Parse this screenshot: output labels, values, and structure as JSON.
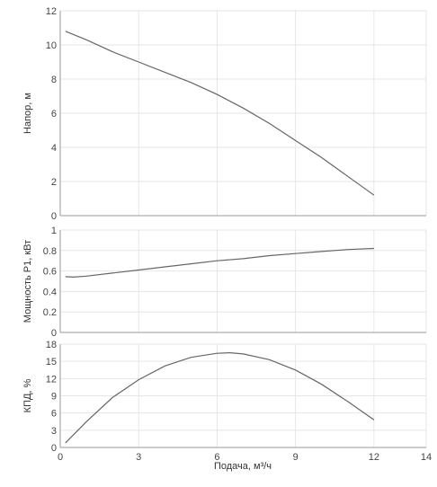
{
  "chart_data": [
    {
      "type": "line",
      "ylabel": "Напор, м",
      "xlim": [
        0,
        14
      ],
      "ylim": [
        0,
        12
      ],
      "y_ticks": [
        0,
        2,
        4,
        6,
        8,
        10,
        12
      ],
      "grid": true,
      "series": [
        {
          "color": "#666666",
          "x": [
            0.2,
            1,
            2,
            3,
            4,
            5,
            6,
            7,
            8,
            9,
            10,
            11,
            12
          ],
          "y": [
            10.8,
            10.3,
            9.6,
            9.0,
            8.4,
            7.8,
            7.1,
            6.3,
            5.4,
            4.4,
            3.4,
            2.3,
            1.2
          ]
        }
      ]
    },
    {
      "type": "line",
      "ylabel": "Мощность P1, кВт",
      "xlim": [
        0,
        14
      ],
      "ylim": [
        0,
        1
      ],
      "y_ticks": [
        0,
        0.2,
        0.4,
        0.6,
        0.8,
        1
      ],
      "y_tick_labels": [
        "0",
        "0.2",
        "0.4",
        "0.6",
        "0.8",
        "1"
      ],
      "grid": true,
      "series": [
        {
          "color": "#666666",
          "x": [
            0.2,
            0.5,
            1,
            2,
            3,
            4,
            5,
            6,
            7,
            8,
            9,
            10,
            11,
            12
          ],
          "y": [
            0.545,
            0.54,
            0.55,
            0.58,
            0.61,
            0.64,
            0.67,
            0.7,
            0.72,
            0.75,
            0.77,
            0.79,
            0.81,
            0.82
          ]
        }
      ]
    },
    {
      "type": "line",
      "ylabel": "КПД, %",
      "xlabel": "Подача, м³/ч",
      "xlim": [
        0,
        14
      ],
      "ylim": [
        0,
        18
      ],
      "y_ticks": [
        0,
        3,
        6,
        9,
        12,
        15,
        18
      ],
      "x_ticks": [
        0,
        3,
        6,
        9,
        12,
        14
      ],
      "grid": true,
      "series": [
        {
          "color": "#666666",
          "x": [
            0.2,
            1,
            2,
            3,
            4,
            5,
            6,
            6.5,
            7,
            8,
            9,
            10,
            11,
            12
          ],
          "y": [
            0.8,
            4.5,
            8.7,
            11.8,
            14.2,
            15.7,
            16.4,
            16.5,
            16.3,
            15.3,
            13.5,
            11.0,
            8.0,
            4.8
          ]
        }
      ]
    }
  ]
}
